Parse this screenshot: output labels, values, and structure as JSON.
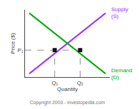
{
  "chart_data": {
    "type": "line",
    "xlabel": "Quantity",
    "ylabel": "Price ($)",
    "annotations": [
      "Copyright 2003 - investopedia.com"
    ],
    "xlim": [
      0,
      10
    ],
    "ylim": [
      0,
      10
    ],
    "xticks": [
      {
        "value": 3.5,
        "label": "Q₁"
      },
      {
        "value": 6.5,
        "label": "Q₂"
      }
    ],
    "yticks": [
      {
        "value": 4.0,
        "label": "P₁"
      }
    ],
    "grid": false,
    "series": [
      {
        "name": "Supply\n(S)",
        "type": "line",
        "color": "#9933ff",
        "line_style": "solid",
        "x": [
          0.5,
          9.5
        ],
        "values": [
          0.5,
          9.5
        ]
      },
      {
        "name": "Demand\n(D)",
        "type": "line",
        "color": "#00aa00",
        "line_style": "solid",
        "x": [
          0.5,
          9.5
        ],
        "values": [
          9.5,
          0.5
        ]
      },
      {
        "type": "line",
        "color": "#888888",
        "line_style": "dash",
        "x": [
          0,
          6.5,
          null,
          3.5,
          3.5,
          null,
          6.5,
          6.5
        ],
        "values": [
          4.0,
          4.0,
          null,
          0,
          4.0,
          null,
          0,
          4.0
        ]
      },
      {
        "type": "scatter",
        "color": "#111111",
        "marker": "square",
        "x": [
          3.5,
          6.5
        ],
        "values": [
          4.0,
          4.0
        ]
      }
    ]
  }
}
